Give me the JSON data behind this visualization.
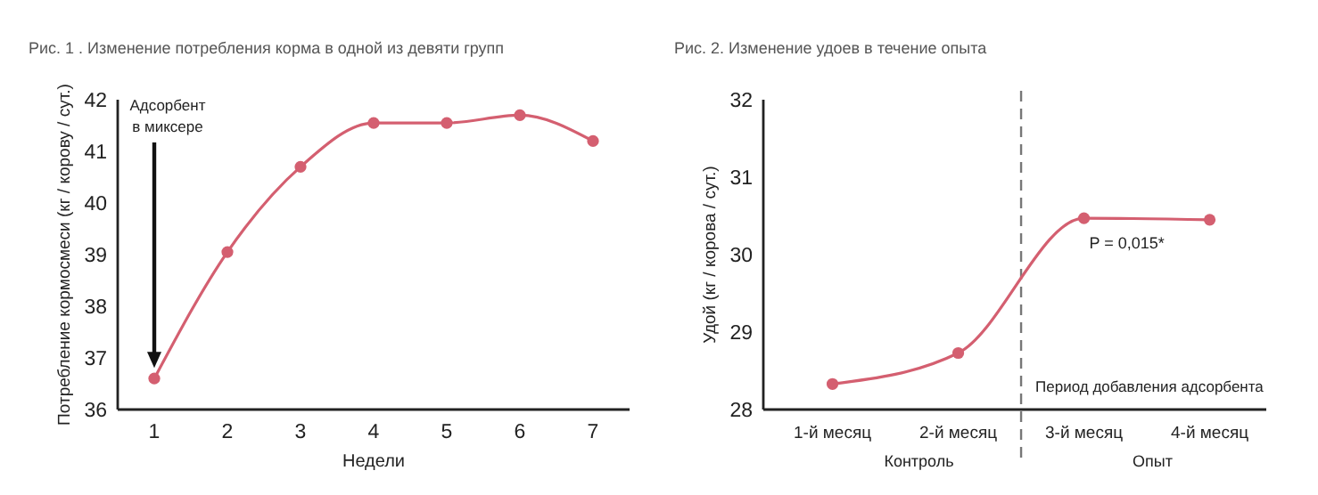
{
  "chart_data": [
    {
      "type": "line",
      "title": "Рис. 1 . Изменение потребления корма в одной из девяти групп",
      "xlabel": "Недели",
      "ylabel": "Потребление кормосмеси (кг / корову / сут.)",
      "x": [
        1,
        2,
        3,
        4,
        5,
        6,
        7
      ],
      "xlim": [
        0.5,
        7.5
      ],
      "xticks": [
        1,
        2,
        3,
        4,
        5,
        6,
        7
      ],
      "ylim": [
        36,
        42
      ],
      "yticks": [
        36,
        37,
        38,
        39,
        40,
        41,
        42
      ],
      "series": [
        {
          "color": "#d45f70",
          "values": [
            36.6,
            39.05,
            40.7,
            41.55,
            41.55,
            41.7,
            41.2
          ]
        }
      ],
      "marker": "circle",
      "grid": false,
      "annotations": [
        "Адсорбент в миксере"
      ]
    },
    {
      "type": "line",
      "title": "Рис. 2. Изменение удоев в течение опыта",
      "ylabel": "Удой (кг / корова / сут.)",
      "x": [
        1,
        2,
        3,
        4
      ],
      "xlim": [
        0.45,
        4.45
      ],
      "xticks": [
        {
          "value": 1,
          "label": "1-й месяц"
        },
        {
          "value": 2,
          "label": "2-й месяц"
        },
        {
          "value": 3,
          "label": "3-й месяц"
        },
        {
          "value": 4,
          "label": "4-й месяц"
        }
      ],
      "ylim": [
        28,
        32
      ],
      "yticks": [
        28,
        29,
        30,
        31,
        32
      ],
      "series": [
        {
          "color": "#d45f70",
          "values": [
            28.33,
            28.73,
            30.47,
            30.45
          ]
        }
      ],
      "marker": "circle",
      "grid": false,
      "ref_lines": [
        {
          "axis": "x",
          "value": 2.5,
          "label": "Период добавления адсорбента",
          "line_style": "dashed",
          "color": "#777777"
        }
      ],
      "annotations": [
        {
          "text": "P = 0,015*",
          "x": 3,
          "y": 30.47
        },
        "Контроль",
        "Опыт"
      ]
    }
  ]
}
